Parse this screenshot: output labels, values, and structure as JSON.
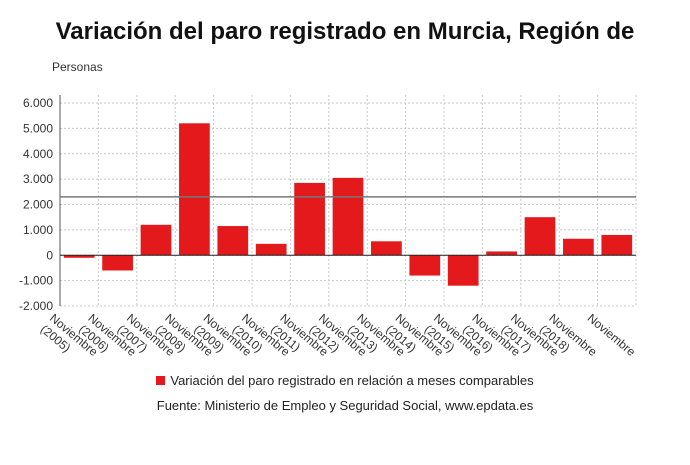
{
  "chart_data": {
    "type": "bar",
    "title": "Variación del paro registrado en Murcia, Región de",
    "ylabel": "Personas",
    "xlabel": "",
    "categories": [
      "Noviembre (2005)",
      "Noviembre (2006)",
      "Noviembre (2007)",
      "Noviembre (2008)",
      "Noviembre (2009)",
      "Noviembre (2010)",
      "Noviembre (2011)",
      "Noviembre (2012)",
      "Noviembre (2013)",
      "Noviembre (2014)",
      "Noviembre (2015)",
      "Noviembre (2016)",
      "Noviembre (2017)",
      "Noviembre (2018)",
      "Noviembre"
    ],
    "series": [
      {
        "name": "Variación del paro registrado en relación a meses comparables",
        "color": "#e3191b",
        "values": [
          -100,
          -600,
          1200,
          5200,
          1150,
          450,
          2850,
          3050,
          550,
          -800,
          -1200,
          150,
          1500,
          650,
          800
        ]
      }
    ],
    "ylim": [
      -2000,
      6000
    ],
    "yticks": [
      -2000,
      -1000,
      0,
      1000,
      2000,
      3000,
      4000,
      5000,
      6000
    ],
    "ytick_labels": [
      "-2.000",
      "-1.000",
      "0",
      "1.000",
      "2.000",
      "3.000",
      "4.000",
      "5.000",
      "6.000"
    ],
    "reference_line": 2300,
    "grid": true,
    "legend_position": "bottom"
  },
  "legend": {
    "label": "Variación del paro registrado en relación a meses comparables"
  },
  "source": "Fuente: Ministerio de Empleo y Seguridad Social, www.epdata.es"
}
